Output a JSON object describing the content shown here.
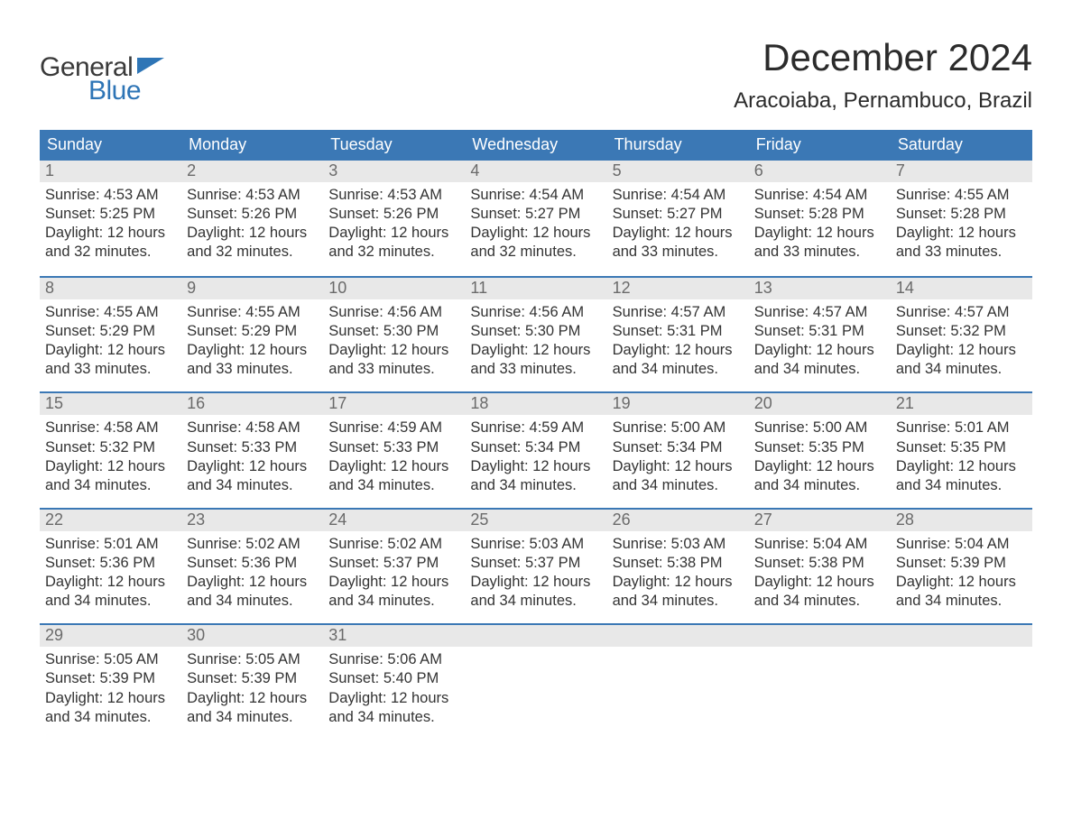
{
  "brand": {
    "top": "General",
    "bottom": "Blue",
    "text_color": "#3a3a3a",
    "accent_color": "#2e75b6"
  },
  "title": "December 2024",
  "location": "Aracoiaba, Pernambuco, Brazil",
  "colors": {
    "header_bg": "#3b78b5",
    "header_text": "#ffffff",
    "daynum_bg": "#e8e8e8",
    "daynum_text": "#6a6a6a",
    "body_text": "#333333",
    "week_divider": "#3b78b5",
    "page_bg": "#ffffff"
  },
  "typography": {
    "title_fontsize": 42,
    "location_fontsize": 24,
    "dayname_fontsize": 18,
    "daynum_fontsize": 18,
    "body_fontsize": 16.5
  },
  "day_names": [
    "Sunday",
    "Monday",
    "Tuesday",
    "Wednesday",
    "Thursday",
    "Friday",
    "Saturday"
  ],
  "weeks": [
    [
      {
        "n": "1",
        "sr": "Sunrise: 4:53 AM",
        "ss": "Sunset: 5:25 PM",
        "d1": "Daylight: 12 hours",
        "d2": "and 32 minutes."
      },
      {
        "n": "2",
        "sr": "Sunrise: 4:53 AM",
        "ss": "Sunset: 5:26 PM",
        "d1": "Daylight: 12 hours",
        "d2": "and 32 minutes."
      },
      {
        "n": "3",
        "sr": "Sunrise: 4:53 AM",
        "ss": "Sunset: 5:26 PM",
        "d1": "Daylight: 12 hours",
        "d2": "and 32 minutes."
      },
      {
        "n": "4",
        "sr": "Sunrise: 4:54 AM",
        "ss": "Sunset: 5:27 PM",
        "d1": "Daylight: 12 hours",
        "d2": "and 32 minutes."
      },
      {
        "n": "5",
        "sr": "Sunrise: 4:54 AM",
        "ss": "Sunset: 5:27 PM",
        "d1": "Daylight: 12 hours",
        "d2": "and 33 minutes."
      },
      {
        "n": "6",
        "sr": "Sunrise: 4:54 AM",
        "ss": "Sunset: 5:28 PM",
        "d1": "Daylight: 12 hours",
        "d2": "and 33 minutes."
      },
      {
        "n": "7",
        "sr": "Sunrise: 4:55 AM",
        "ss": "Sunset: 5:28 PM",
        "d1": "Daylight: 12 hours",
        "d2": "and 33 minutes."
      }
    ],
    [
      {
        "n": "8",
        "sr": "Sunrise: 4:55 AM",
        "ss": "Sunset: 5:29 PM",
        "d1": "Daylight: 12 hours",
        "d2": "and 33 minutes."
      },
      {
        "n": "9",
        "sr": "Sunrise: 4:55 AM",
        "ss": "Sunset: 5:29 PM",
        "d1": "Daylight: 12 hours",
        "d2": "and 33 minutes."
      },
      {
        "n": "10",
        "sr": "Sunrise: 4:56 AM",
        "ss": "Sunset: 5:30 PM",
        "d1": "Daylight: 12 hours",
        "d2": "and 33 minutes."
      },
      {
        "n": "11",
        "sr": "Sunrise: 4:56 AM",
        "ss": "Sunset: 5:30 PM",
        "d1": "Daylight: 12 hours",
        "d2": "and 33 minutes."
      },
      {
        "n": "12",
        "sr": "Sunrise: 4:57 AM",
        "ss": "Sunset: 5:31 PM",
        "d1": "Daylight: 12 hours",
        "d2": "and 34 minutes."
      },
      {
        "n": "13",
        "sr": "Sunrise: 4:57 AM",
        "ss": "Sunset: 5:31 PM",
        "d1": "Daylight: 12 hours",
        "d2": "and 34 minutes."
      },
      {
        "n": "14",
        "sr": "Sunrise: 4:57 AM",
        "ss": "Sunset: 5:32 PM",
        "d1": "Daylight: 12 hours",
        "d2": "and 34 minutes."
      }
    ],
    [
      {
        "n": "15",
        "sr": "Sunrise: 4:58 AM",
        "ss": "Sunset: 5:32 PM",
        "d1": "Daylight: 12 hours",
        "d2": "and 34 minutes."
      },
      {
        "n": "16",
        "sr": "Sunrise: 4:58 AM",
        "ss": "Sunset: 5:33 PM",
        "d1": "Daylight: 12 hours",
        "d2": "and 34 minutes."
      },
      {
        "n": "17",
        "sr": "Sunrise: 4:59 AM",
        "ss": "Sunset: 5:33 PM",
        "d1": "Daylight: 12 hours",
        "d2": "and 34 minutes."
      },
      {
        "n": "18",
        "sr": "Sunrise: 4:59 AM",
        "ss": "Sunset: 5:34 PM",
        "d1": "Daylight: 12 hours",
        "d2": "and 34 minutes."
      },
      {
        "n": "19",
        "sr": "Sunrise: 5:00 AM",
        "ss": "Sunset: 5:34 PM",
        "d1": "Daylight: 12 hours",
        "d2": "and 34 minutes."
      },
      {
        "n": "20",
        "sr": "Sunrise: 5:00 AM",
        "ss": "Sunset: 5:35 PM",
        "d1": "Daylight: 12 hours",
        "d2": "and 34 minutes."
      },
      {
        "n": "21",
        "sr": "Sunrise: 5:01 AM",
        "ss": "Sunset: 5:35 PM",
        "d1": "Daylight: 12 hours",
        "d2": "and 34 minutes."
      }
    ],
    [
      {
        "n": "22",
        "sr": "Sunrise: 5:01 AM",
        "ss": "Sunset: 5:36 PM",
        "d1": "Daylight: 12 hours",
        "d2": "and 34 minutes."
      },
      {
        "n": "23",
        "sr": "Sunrise: 5:02 AM",
        "ss": "Sunset: 5:36 PM",
        "d1": "Daylight: 12 hours",
        "d2": "and 34 minutes."
      },
      {
        "n": "24",
        "sr": "Sunrise: 5:02 AM",
        "ss": "Sunset: 5:37 PM",
        "d1": "Daylight: 12 hours",
        "d2": "and 34 minutes."
      },
      {
        "n": "25",
        "sr": "Sunrise: 5:03 AM",
        "ss": "Sunset: 5:37 PM",
        "d1": "Daylight: 12 hours",
        "d2": "and 34 minutes."
      },
      {
        "n": "26",
        "sr": "Sunrise: 5:03 AM",
        "ss": "Sunset: 5:38 PM",
        "d1": "Daylight: 12 hours",
        "d2": "and 34 minutes."
      },
      {
        "n": "27",
        "sr": "Sunrise: 5:04 AM",
        "ss": "Sunset: 5:38 PM",
        "d1": "Daylight: 12 hours",
        "d2": "and 34 minutes."
      },
      {
        "n": "28",
        "sr": "Sunrise: 5:04 AM",
        "ss": "Sunset: 5:39 PM",
        "d1": "Daylight: 12 hours",
        "d2": "and 34 minutes."
      }
    ],
    [
      {
        "n": "29",
        "sr": "Sunrise: 5:05 AM",
        "ss": "Sunset: 5:39 PM",
        "d1": "Daylight: 12 hours",
        "d2": "and 34 minutes."
      },
      {
        "n": "30",
        "sr": "Sunrise: 5:05 AM",
        "ss": "Sunset: 5:39 PM",
        "d1": "Daylight: 12 hours",
        "d2": "and 34 minutes."
      },
      {
        "n": "31",
        "sr": "Sunrise: 5:06 AM",
        "ss": "Sunset: 5:40 PM",
        "d1": "Daylight: 12 hours",
        "d2": "and 34 minutes."
      },
      null,
      null,
      null,
      null
    ]
  ]
}
